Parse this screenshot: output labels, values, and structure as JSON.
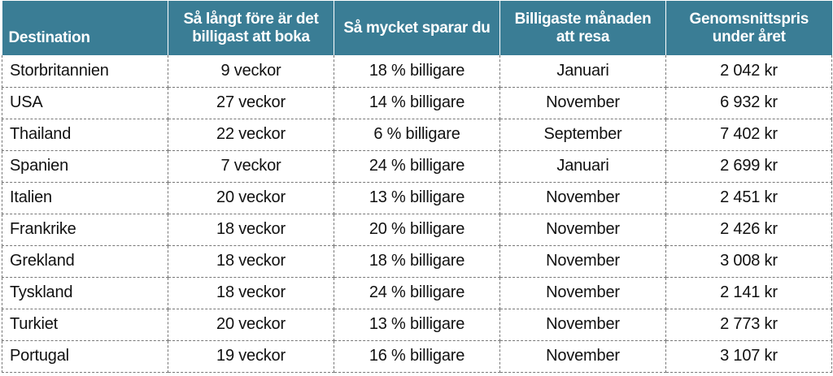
{
  "table": {
    "headers": [
      "Destination",
      "Så långt före är det billigast att boka",
      "Så mycket sparar du",
      "Billigaste månaden att resa",
      "Genomsnittspris under året"
    ],
    "rows": [
      [
        "Storbritannien",
        "9 veckor",
        "18 % billigare",
        "Januari",
        "2 042 kr"
      ],
      [
        "USA",
        "27 veckor",
        "14 % billigare",
        "November",
        "6 932 kr"
      ],
      [
        "Thailand",
        "22 veckor",
        "6 % billigare",
        "September",
        "7 402 kr"
      ],
      [
        "Spanien",
        "7 veckor",
        "24 % billigare",
        "Januari",
        "2 699 kr"
      ],
      [
        "Italien",
        "20 veckor",
        "13 % billigare",
        "November",
        "2 451 kr"
      ],
      [
        "Frankrike",
        "18 veckor",
        "20 % billigare",
        "November",
        "2 426 kr"
      ],
      [
        "Grekland",
        "18 veckor",
        "18 % billigare",
        "November",
        "3 008 kr"
      ],
      [
        "Tyskland",
        "18 veckor",
        "24 % billigare",
        "November",
        "2 141 kr"
      ],
      [
        "Turkiet",
        "20 veckor",
        "13 % billigare",
        "November",
        "2 773 kr"
      ],
      [
        "Portugal",
        "19 veckor",
        "16 % billigare",
        "November",
        "3 107 kr"
      ]
    ]
  },
  "colors": {
    "header_bg": "#3a7d95",
    "header_text": "#ffffff",
    "cell_text": "#111111",
    "border": "#777777"
  }
}
